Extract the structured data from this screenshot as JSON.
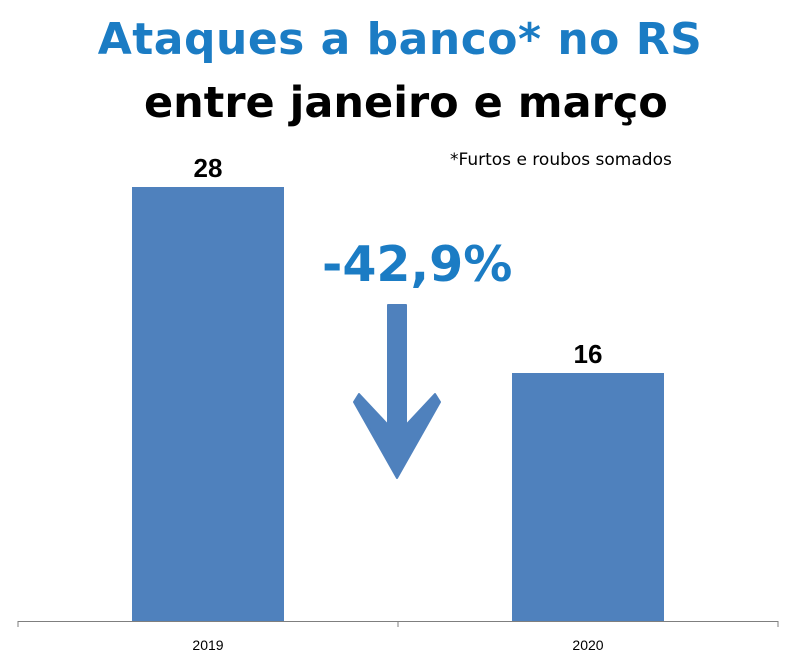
{
  "header": {
    "title": "Ataques a banco* no RS",
    "subtitle": "entre janeiro e março",
    "note": "*Furtos e roubos somados"
  },
  "annotation": {
    "change_label": "-42,9%",
    "arrow_icon": "down-arrow-icon",
    "color": "#1b7cc4"
  },
  "colors": {
    "bar": "#4f81bd",
    "axis": "#7f7f7f",
    "title": "#1b7cc4"
  },
  "chart_data": {
    "type": "bar",
    "title": "Ataques a banco* no RS",
    "subtitle": "entre janeiro e março",
    "categories": [
      "2019",
      "2020"
    ],
    "values": [
      28,
      16
    ],
    "xlabel": "",
    "ylabel": "",
    "ylim": [
      0,
      32
    ],
    "grid": false,
    "legend": "none",
    "data_labels": true
  }
}
